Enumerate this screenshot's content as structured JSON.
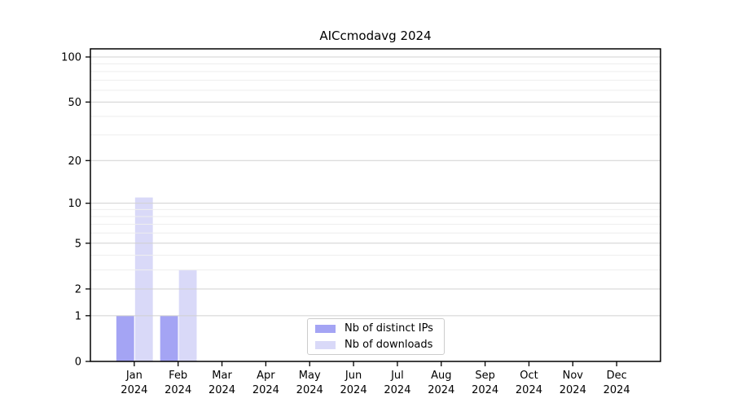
{
  "title": "AICcmodavg 2024",
  "chart_data": {
    "type": "bar",
    "title": "AICcmodavg 2024",
    "xlabel": "",
    "ylabel": "",
    "scale": "log1p",
    "grid": "on",
    "legend_position": "lower center",
    "categories": [
      "Jan",
      "Feb",
      "Mar",
      "Apr",
      "May",
      "Jun",
      "Jul",
      "Aug",
      "Sep",
      "Oct",
      "Nov",
      "Dec"
    ],
    "year": "2024",
    "series": [
      {
        "name": "Nb of distinct IPs",
        "color": "#a4a4f4",
        "values": [
          1,
          1,
          0,
          0,
          0,
          0,
          0,
          0,
          0,
          0,
          0,
          0
        ]
      },
      {
        "name": "Nb of downloads",
        "color": "#d9d9f8",
        "values": [
          11,
          3,
          0,
          0,
          0,
          0,
          0,
          0,
          0,
          0,
          0,
          0
        ]
      }
    ],
    "yticks": [
      0,
      1,
      2,
      5,
      10,
      20,
      50,
      100
    ],
    "minor_gridlines": [
      3,
      4,
      6,
      7,
      8,
      9,
      30,
      40,
      60,
      70,
      80,
      90
    ],
    "ylim": [
      0,
      113
    ]
  },
  "colors": {
    "frame": "#000000",
    "major_grid": "#d0d0d0",
    "minor_grid": "#eeeeee",
    "text": "#000000",
    "background": "#ffffff"
  }
}
